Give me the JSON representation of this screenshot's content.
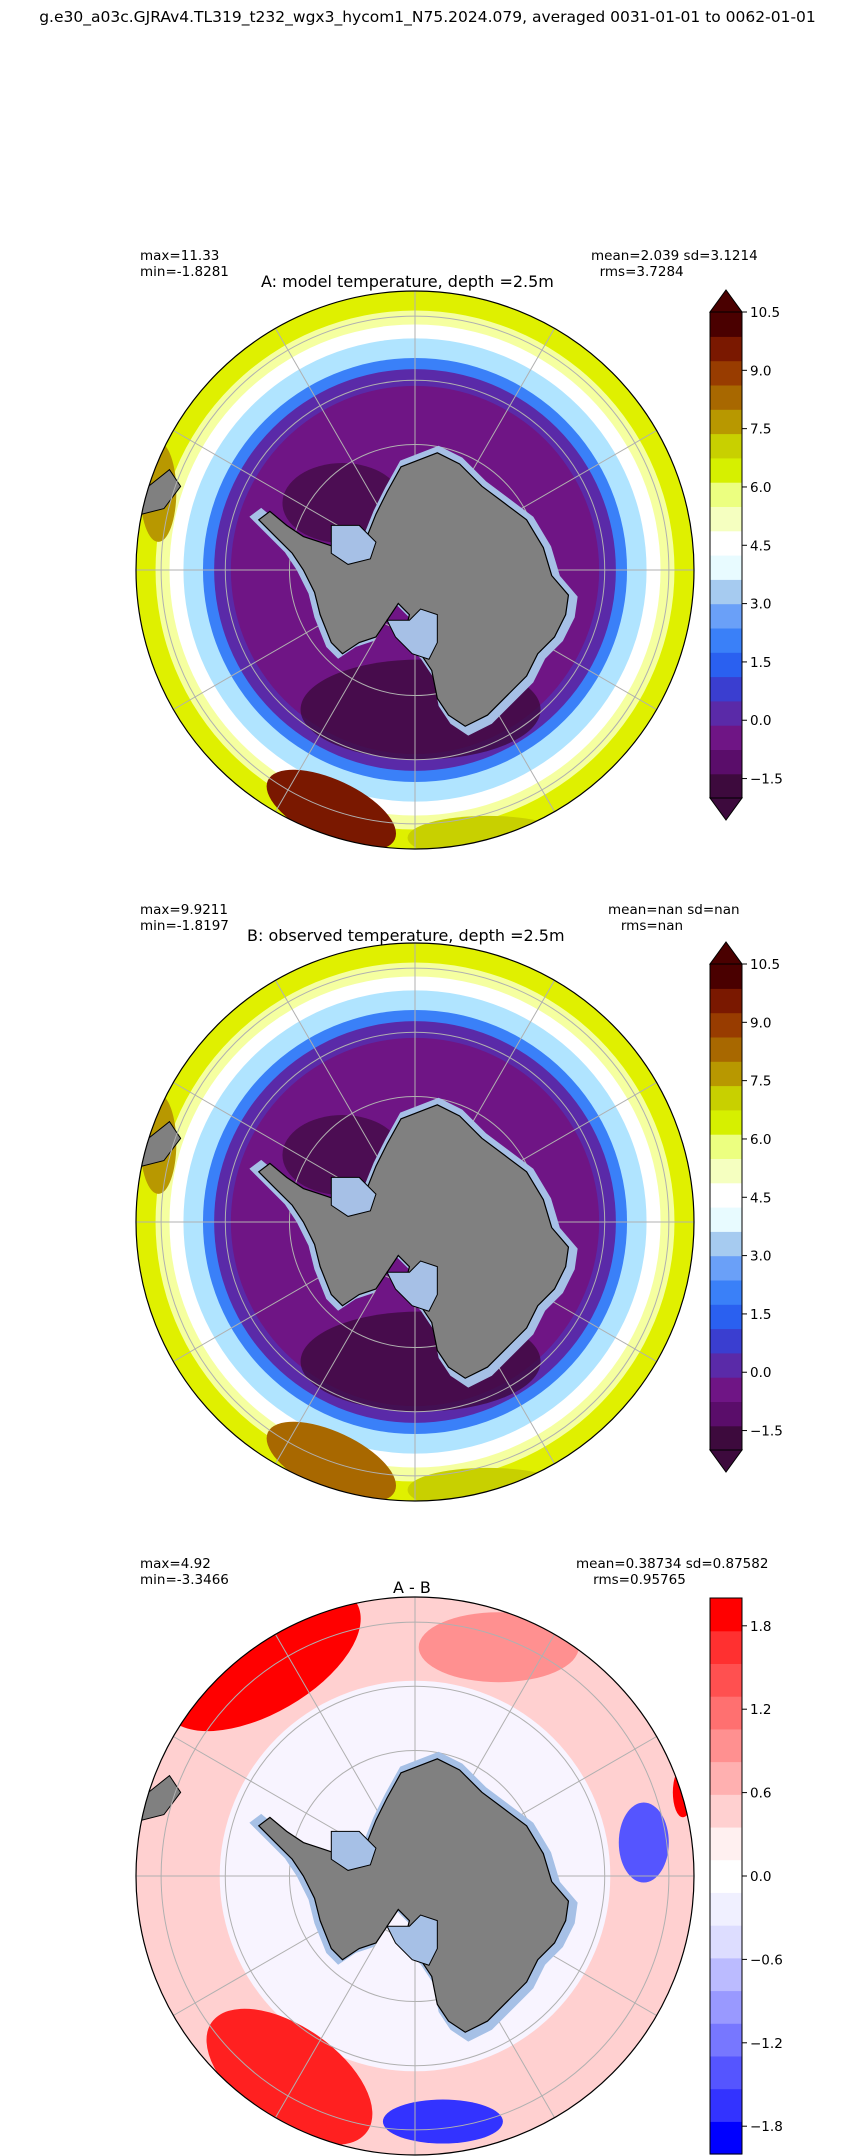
{
  "title": "g.e30_a03c.GJRAv4.TL319_t232_wgx3_hycom1_N75.2024.079, averaged 0031-01-01 to 0062-01-01",
  "panels": [
    {
      "id": "A",
      "title": "A: model temperature, depth =2.5m",
      "stats_left": "max=11.33\nmin=-1.8281",
      "stats_right": "mean=2.039 sd=3.1214\n  rms=3.7284",
      "colorbar": {
        "type": "thermal",
        "ticks": [
          "10.5",
          "9.0",
          "7.5",
          "6.0",
          "4.5",
          "3.0",
          "1.5",
          "0.0",
          "−1.5"
        ],
        "range": [
          -2.0,
          10.5
        ],
        "extend": "both"
      }
    },
    {
      "id": "B",
      "title": "B: observed temperature, depth =2.5m",
      "stats_left": "max=9.9211\nmin=-1.8197",
      "stats_right": "mean=nan sd=nan\n   rms=nan",
      "colorbar": {
        "type": "thermal",
        "ticks": [
          "10.5",
          "9.0",
          "7.5",
          "6.0",
          "4.5",
          "3.0",
          "1.5",
          "0.0",
          "−1.5"
        ],
        "range": [
          -2.0,
          10.5
        ],
        "extend": "both"
      }
    },
    {
      "id": "C",
      "title": "A - B",
      "stats_left": "max=4.92\nmin=-3.3466",
      "stats_right": "mean=0.38734 sd=0.87582\n    rms=0.95765",
      "colorbar": {
        "type": "diverging",
        "ticks": [
          "1.8",
          "1.2",
          "0.6",
          "0.0",
          "−0.6",
          "−1.2",
          "−1.8"
        ],
        "range": [
          -2.0,
          2.0
        ],
        "extend": "neither"
      }
    }
  ],
  "colors": {
    "land": "#808080",
    "ice_shelf": "#a6c0e6",
    "graticule": "#b0b0b0",
    "thermal_scale": [
      "#3d0a3d",
      "#5a0d6a",
      "#6f1585",
      "#5a2aa8",
      "#3a3ed0",
      "#2a60f0",
      "#3a80f8",
      "#6aa0f8",
      "#a6cbf0",
      "#e8fbff",
      "#ffffff",
      "#f5ffc0",
      "#ecff80",
      "#d6f000",
      "#c8d000",
      "#b89800",
      "#a86800",
      "#983c00",
      "#7a1800",
      "#4a0000"
    ],
    "diverging_scale": [
      "#0000ff",
      "#3333ff",
      "#5555ff",
      "#7777ff",
      "#9999ff",
      "#bbbbff",
      "#ddddff",
      "#f0f0ff",
      "#ffffff",
      "#fff0f0",
      "#ffd0d0",
      "#ffb0b0",
      "#ff9090",
      "#ff7070",
      "#ff5050",
      "#ff3030",
      "#ff0000"
    ]
  }
}
